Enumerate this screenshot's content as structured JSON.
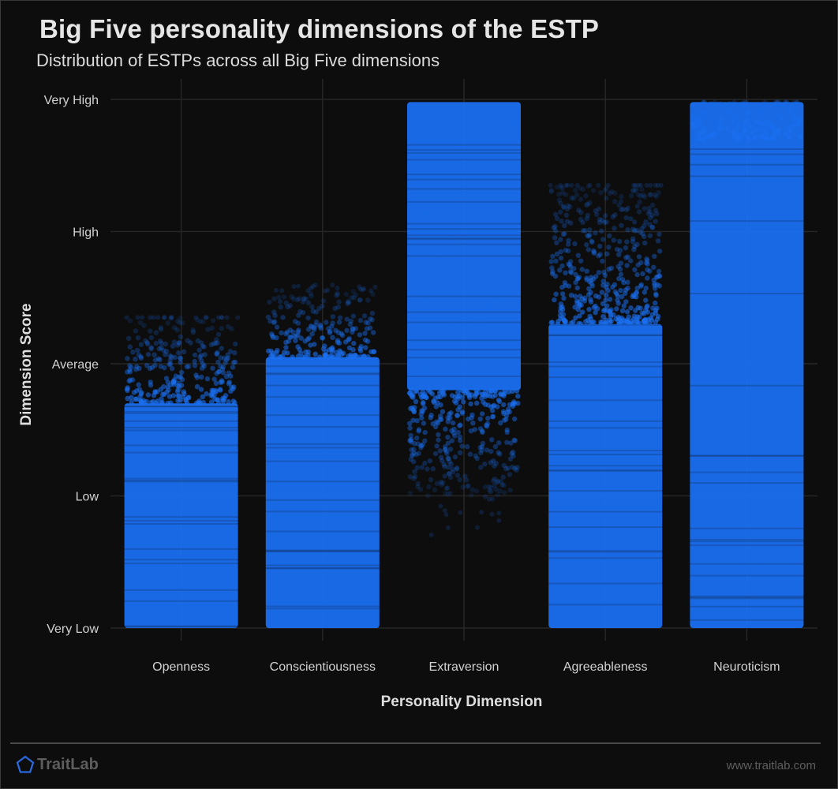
{
  "header": {
    "title": "Big Five personality dimensions of the ESTP",
    "subtitle": "Distribution of ESTPs across all Big Five dimensions"
  },
  "chart_data": {
    "type": "scatter",
    "xlabel": "Personality Dimension",
    "ylabel": "Dimension Score",
    "categories": [
      "Openness",
      "Conscientiousness",
      "Extraversion",
      "Agreeableness",
      "Neuroticism"
    ],
    "y_ticks": [
      "Very Low",
      "Low",
      "Average",
      "High",
      "Very High"
    ],
    "ylim": [
      0,
      4
    ],
    "grid": true,
    "point_color": "#1a6ff0",
    "distributions": [
      {
        "name": "Openness",
        "dense_range": [
          0.0,
          1.7
        ],
        "sparse_range": [
          1.7,
          2.35
        ],
        "outlier_max": 2.35
      },
      {
        "name": "Conscientiousness",
        "dense_range": [
          0.0,
          2.05
        ],
        "sparse_range": [
          2.05,
          2.55
        ],
        "outlier_max": 2.6
      },
      {
        "name": "Extraversion",
        "dense_range": [
          1.8,
          3.98
        ],
        "sparse_range": [
          1.0,
          1.8
        ],
        "outlier_max": 3.98,
        "outlier_min": 0.7
      },
      {
        "name": "Agreeableness",
        "dense_range": [
          0.0,
          2.3
        ],
        "sparse_range": [
          2.3,
          3.35
        ],
        "outlier_max": 3.35
      },
      {
        "name": "Neuroticism",
        "dense_range": [
          0.0,
          3.98
        ],
        "sparse_range": [
          3.7,
          3.98
        ],
        "outlier_max": 3.98
      }
    ]
  },
  "footer": {
    "brand": "TraitLab",
    "url": "www.traitlab.com",
    "brand_color": "#2a6ae0"
  }
}
